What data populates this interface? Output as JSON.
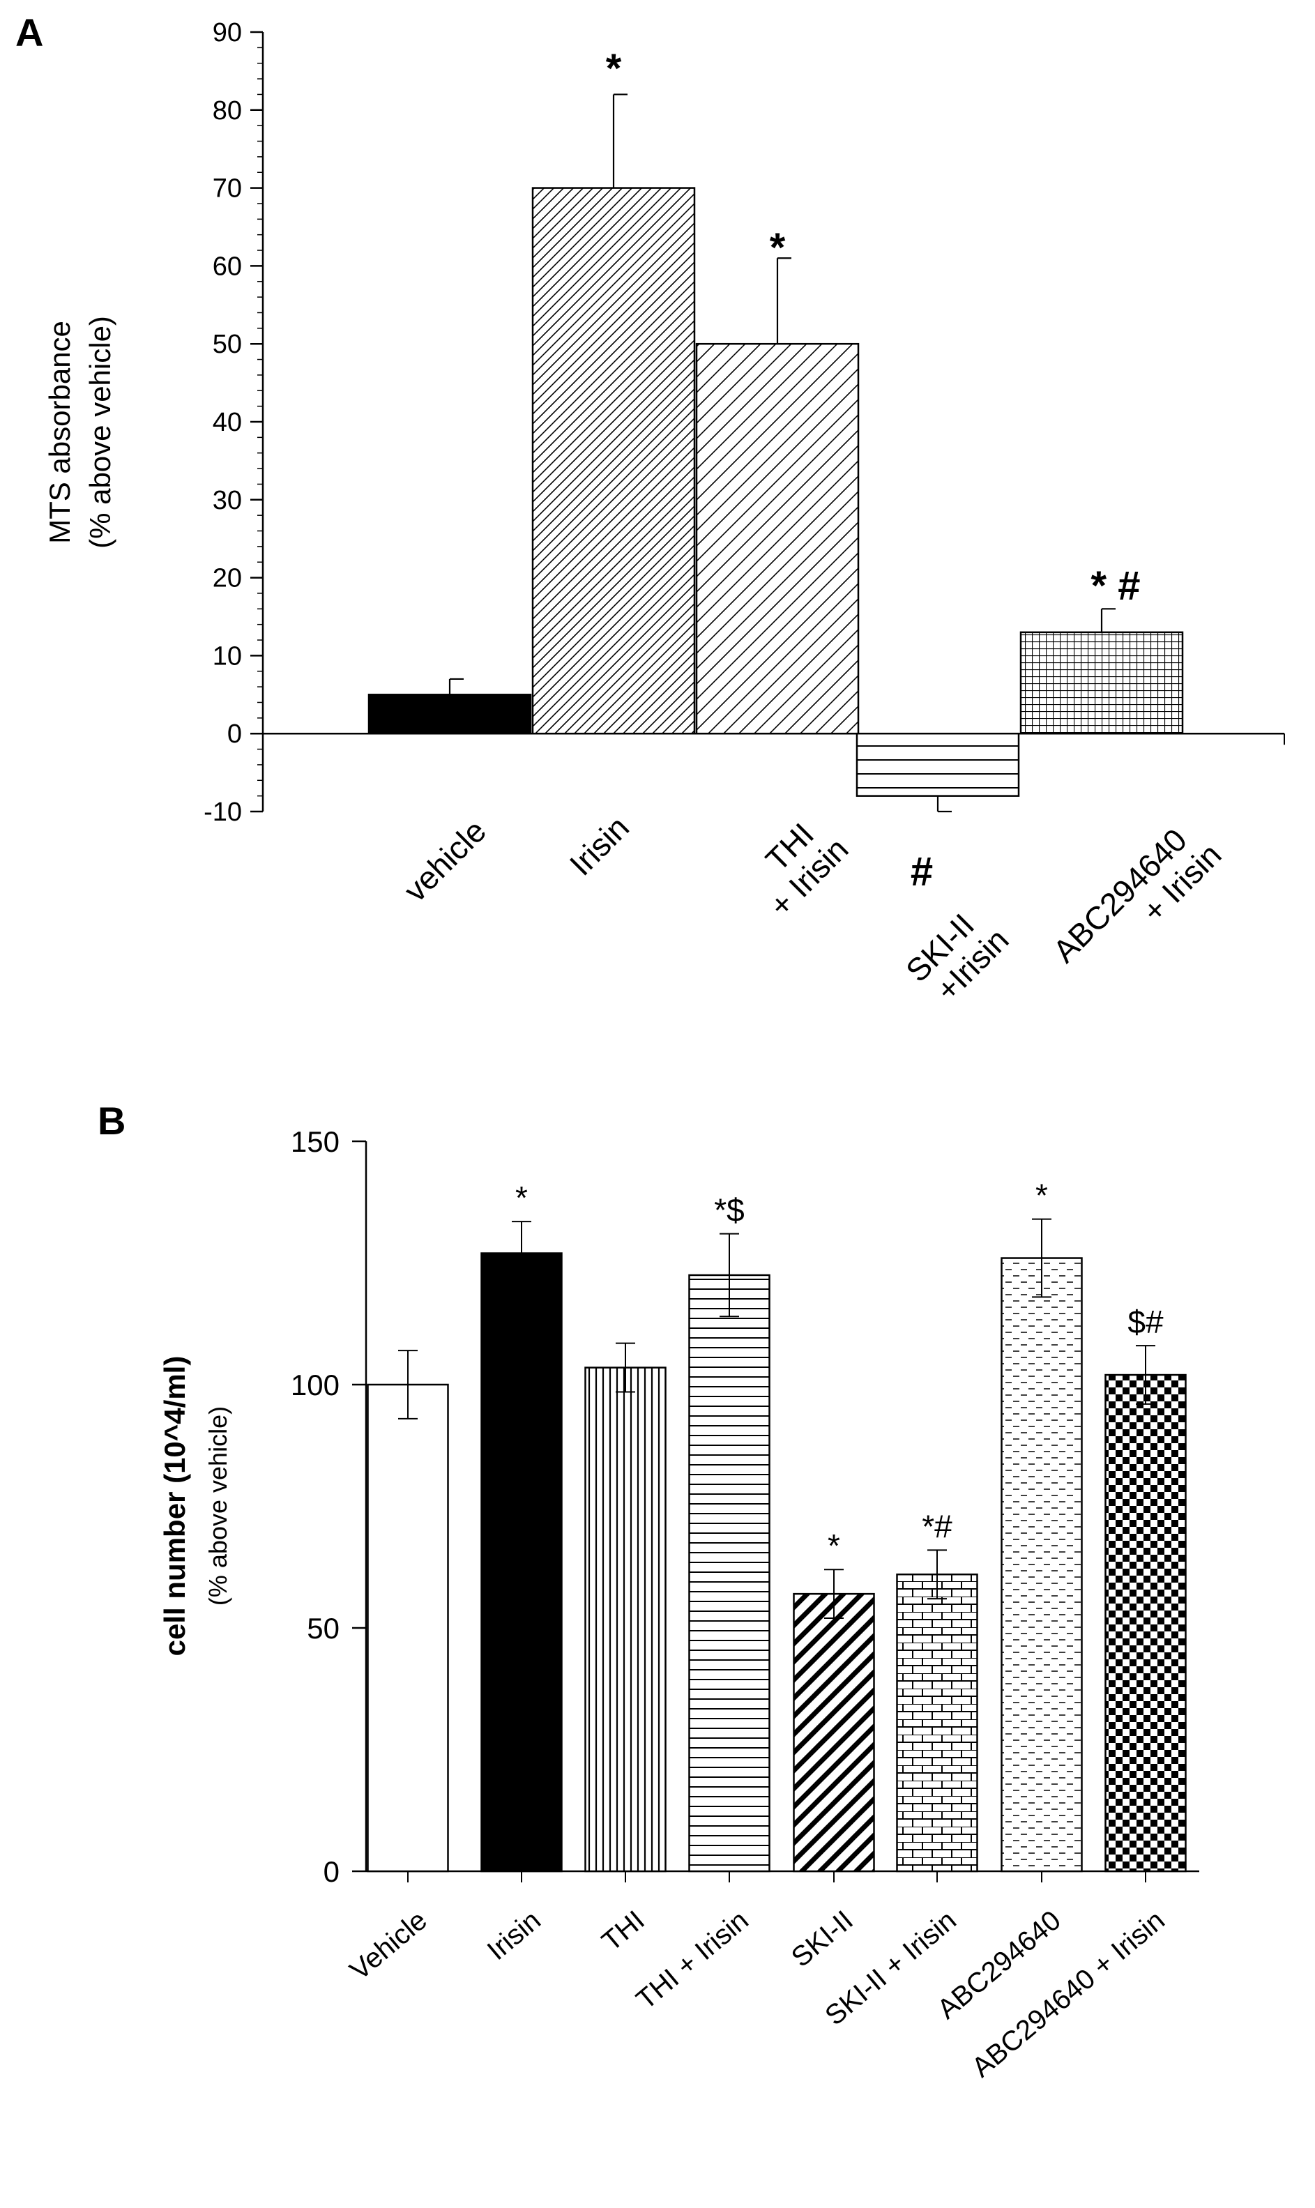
{
  "chart_data": [
    {
      "type": "bar",
      "panel_label": "A",
      "title": "",
      "xlabel": "",
      "ylabel_lines": [
        "MTS absorbance",
        "(% above vehicle)"
      ],
      "ylim": [
        -10,
        90
      ],
      "yticks": [
        -10,
        0,
        10,
        20,
        30,
        40,
        50,
        60,
        70,
        80,
        90
      ],
      "grid": false,
      "categories": [
        [
          "vehicle"
        ],
        [
          "Irisin"
        ],
        [
          "THI",
          "+ Irisin"
        ],
        [
          "SKI-II",
          "+Irisin"
        ],
        [
          "ABC294640",
          "+ Irisin"
        ]
      ],
      "values": [
        5,
        70,
        50,
        -8,
        13
      ],
      "errors": [
        2,
        12,
        11,
        2,
        3
      ],
      "patterns": [
        "solid-black",
        "diagonal-dense",
        "diagonal-sparse",
        "horizontal",
        "grid"
      ],
      "annotations": [
        "",
        "*",
        "*",
        "#",
        "* #"
      ]
    },
    {
      "type": "bar",
      "panel_label": "B",
      "title": "",
      "xlabel": "",
      "ylabel_lines": [
        "cell number (10^4/ml)",
        "(% above vehicle)"
      ],
      "ylim": [
        0,
        150
      ],
      "yticks": [
        0,
        50,
        100,
        150
      ],
      "grid": false,
      "categories": [
        "Vehicle",
        "Irisin",
        "THI",
        "THI + Irisin",
        "SKI-II",
        "SKI-II  + Irisin",
        "ABC294640",
        "ABC294640 + Irisin"
      ],
      "values": [
        100,
        127,
        103.5,
        122.5,
        57,
        61,
        126,
        102
      ],
      "errors": [
        7,
        6.5,
        5,
        8.5,
        5,
        5,
        8,
        6
      ],
      "patterns": [
        "white",
        "solid-black",
        "vertical",
        "horizontal",
        "diagonal-thick",
        "brick",
        "dashes",
        "checker"
      ],
      "annotations": [
        "",
        "*",
        "",
        "*$",
        "*",
        "*#",
        "*",
        "$#"
      ]
    }
  ]
}
